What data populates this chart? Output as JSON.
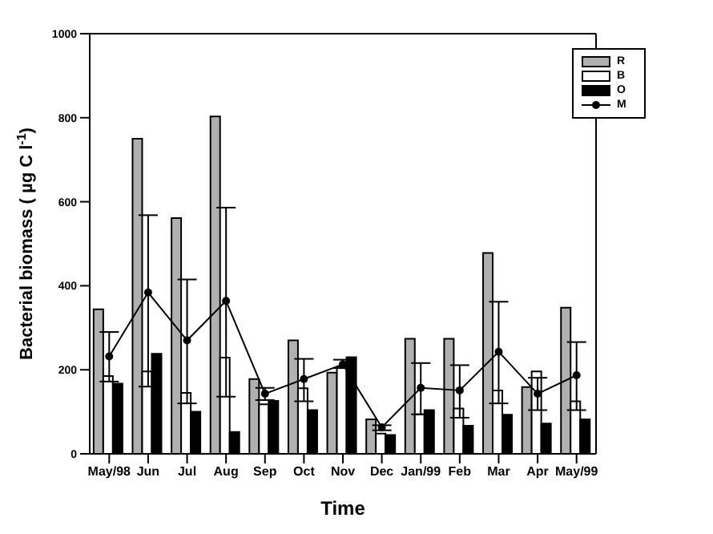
{
  "chart_data": {
    "type": "bar",
    "xlabel": "Time",
    "ylabel": "Bacterial biomass ( µg C l$^{-1}$)",
    "categories": [
      "May/98",
      "Jun",
      "Jul",
      "Aug",
      "Sep",
      "Oct",
      "Nov",
      "Dec",
      "Jan/99",
      "Feb",
      "Mar",
      "Apr",
      "May/99"
    ],
    "series": [
      {
        "name": "R",
        "color": "#b0b0b0",
        "values": [
          344,
          750,
          561,
          803,
          178,
          270,
          193,
          82,
          274,
          274,
          478,
          159,
          348
        ]
      },
      {
        "name": "B",
        "color": "#ffffff",
        "values": [
          185,
          196,
          145,
          229,
          118,
          156,
          207,
          48,
          94,
          108,
          151,
          196,
          125
        ]
      },
      {
        "name": "O",
        "color": "#000000",
        "values": [
          167,
          238,
          100,
          52,
          126,
          104,
          230,
          45,
          104,
          67,
          93,
          72,
          82
        ]
      },
      {
        "name": "M",
        "type": "line",
        "color": "#000000",
        "marker": "circle",
        "values": [
          232,
          384,
          270,
          364,
          143,
          178,
          213,
          63,
          157,
          151,
          243,
          143,
          187
        ],
        "errors": [
          [
            172,
            290
          ],
          [
            160,
            568
          ],
          [
            120,
            415
          ],
          [
            136,
            586
          ],
          [
            128,
            157
          ],
          [
            125,
            226
          ],
          [
            204,
            224
          ],
          [
            56,
            68
          ],
          [
            94,
            216
          ],
          [
            86,
            211
          ],
          [
            120,
            362
          ],
          [
            104,
            181
          ],
          [
            104,
            266
          ]
        ]
      }
    ],
    "ylim": [
      0,
      1000
    ],
    "yticks": [
      0,
      200,
      400,
      600,
      800,
      1000
    ],
    "legend": "top right"
  }
}
